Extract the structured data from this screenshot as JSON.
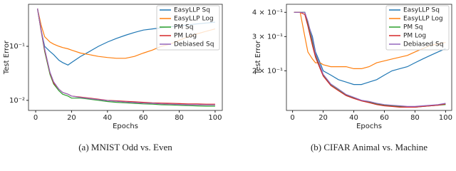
{
  "chart_data": [
    {
      "type": "line",
      "caption": "(a) MNIST Odd vs. Even",
      "x_label": "Epochs",
      "y_label": "Test Error",
      "log_y": true,
      "legend": "upper right",
      "x": [
        1,
        3,
        5,
        8,
        10,
        13,
        15,
        18,
        20,
        25,
        30,
        35,
        40,
        45,
        50,
        55,
        60,
        65,
        70,
        75,
        80,
        85,
        90,
        95,
        100
      ],
      "xlim": [
        -4,
        104
      ],
      "xticks": [
        0,
        20,
        40,
        60,
        80,
        100
      ],
      "ylim": [
        0.0065,
        0.6
      ],
      "yticks": [
        {
          "value": 0.01,
          "label": "10⁻²"
        },
        {
          "value": 0.1,
          "label": "10⁻¹"
        }
      ],
      "series": [
        {
          "name": "EasyLLP Sq",
          "color": "#1f77b4",
          "values": [
            0.5,
            0.2,
            0.1,
            0.08,
            0.07,
            0.055,
            0.05,
            0.045,
            0.05,
            0.065,
            0.08,
            0.1,
            0.12,
            0.14,
            0.16,
            0.18,
            0.2,
            0.21,
            0.22,
            0.23,
            0.24,
            0.25,
            0.26,
            0.27,
            0.28
          ]
        },
        {
          "name": "EasyLLP Log",
          "color": "#ff7f0e",
          "values": [
            0.5,
            0.25,
            0.15,
            0.12,
            0.11,
            0.1,
            0.095,
            0.09,
            0.085,
            0.075,
            0.07,
            0.065,
            0.062,
            0.06,
            0.06,
            0.065,
            0.075,
            0.085,
            0.1,
            0.11,
            0.13,
            0.15,
            0.17,
            0.19,
            0.21
          ]
        },
        {
          "name": "PM Sq",
          "color": "#2ca02c",
          "values": [
            0.5,
            0.2,
            0.08,
            0.03,
            0.02,
            0.015,
            0.013,
            0.012,
            0.011,
            0.011,
            0.0105,
            0.01,
            0.0095,
            0.0092,
            0.009,
            0.0088,
            0.0086,
            0.0085,
            0.0083,
            0.0082,
            0.0081,
            0.008,
            0.0079,
            0.0078,
            0.0078
          ]
        },
        {
          "name": "PM Log",
          "color": "#d62728",
          "values": [
            0.5,
            0.2,
            0.085,
            0.032,
            0.021,
            0.016,
            0.014,
            0.013,
            0.012,
            0.0115,
            0.011,
            0.0105,
            0.01,
            0.0098,
            0.0096,
            0.0094,
            0.0092,
            0.009,
            0.0089,
            0.0088,
            0.0087,
            0.0086,
            0.0086,
            0.0085,
            0.0085
          ]
        },
        {
          "name": "Debiased Sq",
          "color": "#9467bd",
          "values": [
            0.5,
            0.21,
            0.09,
            0.033,
            0.022,
            0.016,
            0.014,
            0.013,
            0.012,
            0.0113,
            0.0108,
            0.0103,
            0.0099,
            0.0096,
            0.0093,
            0.0091,
            0.0089,
            0.0088,
            0.0086,
            0.0085,
            0.0084,
            0.0083,
            0.0083,
            0.0082,
            0.0082
          ]
        }
      ]
    },
    {
      "type": "line",
      "caption": "(b) CIFAR Animal vs. Machine",
      "x_label": "Epochs",
      "y_label": "Test Error",
      "log_y": true,
      "legend": "upper right",
      "x": [
        1,
        3,
        5,
        8,
        10,
        13,
        15,
        18,
        20,
        25,
        30,
        35,
        40,
        45,
        50,
        55,
        60,
        65,
        70,
        75,
        80,
        85,
        90,
        95,
        100
      ],
      "xlim": [
        -4,
        104
      ],
      "xticks": [
        0,
        20,
        40,
        60,
        80,
        100
      ],
      "ylim": [
        0.125,
        0.44
      ],
      "yticks": [
        {
          "value": 0.2,
          "label": "2 × 10⁻¹"
        },
        {
          "value": 0.3,
          "label": "3 × 10⁻¹"
        },
        {
          "value": 0.4,
          "label": "4 × 10⁻¹"
        }
      ],
      "series": [
        {
          "name": "EasyLLP Sq",
          "color": "#1f77b4",
          "values": [
            0.4,
            0.4,
            0.4,
            0.4,
            0.35,
            0.3,
            0.25,
            0.22,
            0.2,
            0.19,
            0.18,
            0.175,
            0.17,
            0.17,
            0.175,
            0.18,
            0.19,
            0.2,
            0.205,
            0.21,
            0.22,
            0.23,
            0.24,
            0.25,
            0.26
          ]
        },
        {
          "name": "EasyLLP Log",
          "color": "#ff7f0e",
          "values": [
            0.4,
            0.4,
            0.4,
            0.3,
            0.25,
            0.23,
            0.22,
            0.22,
            0.215,
            0.21,
            0.21,
            0.21,
            0.205,
            0.205,
            0.21,
            0.22,
            0.225,
            0.23,
            0.235,
            0.24,
            0.25,
            0.26,
            0.27,
            0.275,
            0.28
          ]
        },
        {
          "name": "PM Sq",
          "color": "#2ca02c",
          "values": [
            0.4,
            0.4,
            0.4,
            0.4,
            0.35,
            0.28,
            0.24,
            0.21,
            0.19,
            0.17,
            0.16,
            0.15,
            0.145,
            0.14,
            0.138,
            0.135,
            0.133,
            0.132,
            0.131,
            0.13,
            0.13,
            0.131,
            0.132,
            0.133,
            0.134
          ]
        },
        {
          "name": "PM Log",
          "color": "#d62728",
          "values": [
            0.4,
            0.4,
            0.4,
            0.39,
            0.34,
            0.27,
            0.235,
            0.205,
            0.188,
            0.168,
            0.158,
            0.149,
            0.144,
            0.14,
            0.137,
            0.134,
            0.132,
            0.131,
            0.13,
            0.13,
            0.13,
            0.131,
            0.132,
            0.133,
            0.135
          ]
        },
        {
          "name": "Debiased Sq",
          "color": "#9467bd",
          "values": [
            0.4,
            0.4,
            0.4,
            0.4,
            0.36,
            0.29,
            0.245,
            0.212,
            0.192,
            0.171,
            0.161,
            0.151,
            0.146,
            0.141,
            0.139,
            0.136,
            0.134,
            0.133,
            0.132,
            0.131,
            0.131,
            0.132,
            0.133,
            0.134,
            0.136
          ]
        }
      ]
    }
  ]
}
